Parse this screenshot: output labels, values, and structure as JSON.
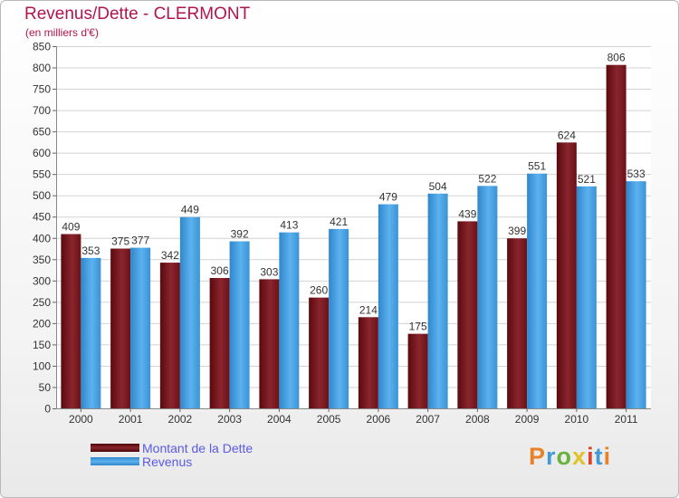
{
  "chart_data": {
    "type": "bar",
    "title": "Revenus/Dette - CLERMONT",
    "subtitle": "(en milliers d'€)",
    "xlabel": "",
    "ylabel": "",
    "ylim": [
      0,
      850
    ],
    "yticks": [
      0,
      50,
      100,
      150,
      200,
      250,
      300,
      350,
      400,
      450,
      500,
      550,
      600,
      650,
      700,
      750,
      800,
      850
    ],
    "grid": true,
    "legend_position": "bottom-left",
    "categories": [
      "2000",
      "2001",
      "2002",
      "2003",
      "2004",
      "2005",
      "2006",
      "2007",
      "2008",
      "2009",
      "2010",
      "2011"
    ],
    "series": [
      {
        "name": "Montant de la Dette",
        "color": "#7a1a22",
        "values": [
          409,
          375,
          342,
          306,
          303,
          260,
          214,
          175,
          439,
          399,
          624,
          806
        ]
      },
      {
        "name": "Revenus",
        "color": "#4aa3e6",
        "values": [
          353,
          377,
          449,
          392,
          413,
          421,
          479,
          504,
          522,
          551,
          521,
          533
        ]
      }
    ]
  },
  "logo": {
    "text": "Proxiti",
    "colors": [
      "#e8822a",
      "#3f9ad6",
      "#6ab23e",
      "#e2c22a",
      "#d9442e",
      "#3f9ad6",
      "#e8822a"
    ]
  }
}
